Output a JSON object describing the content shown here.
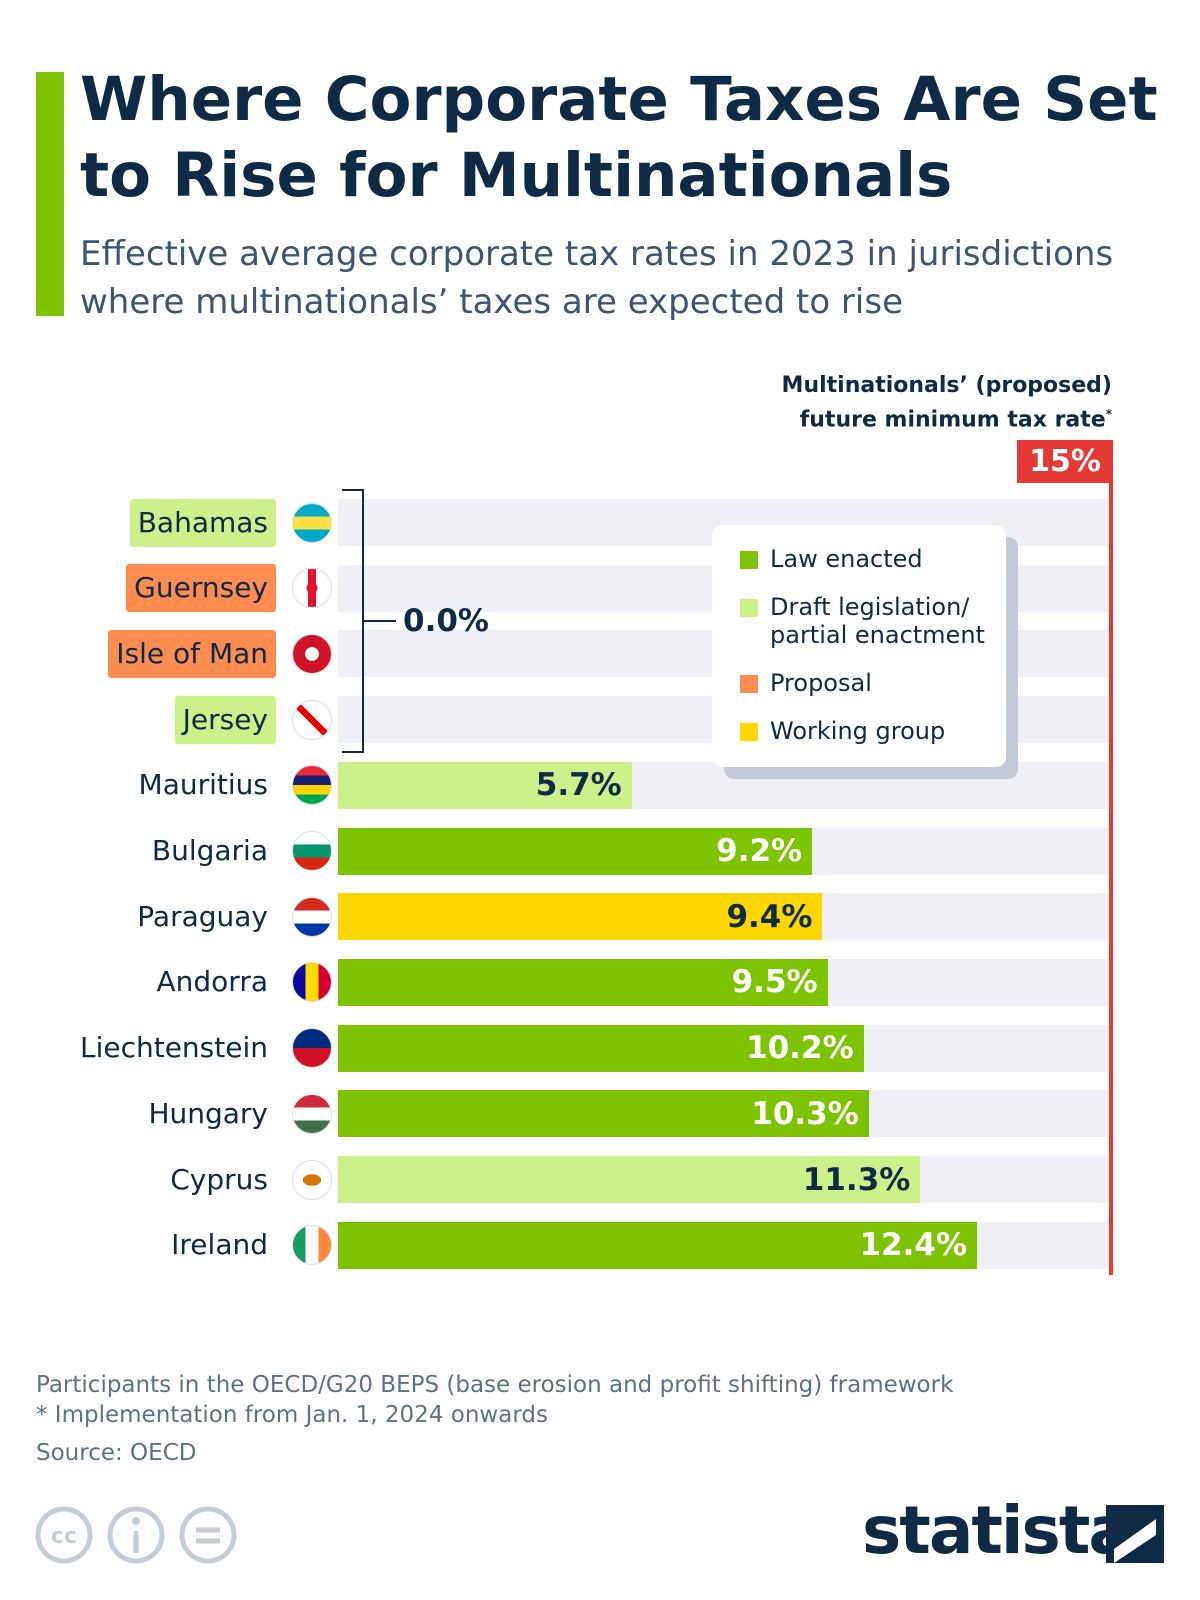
{
  "chart_data": {
    "type": "bar",
    "orientation": "horizontal",
    "title": "Where Corporate Taxes Are Set to Rise for Multinationals",
    "subtitle": "Effective average corporate tax rates in 2023 in jurisdictions where multinationals’ taxes are expected to rise",
    "categories": [
      "Bahamas",
      "Guernsey",
      "Isle of Man",
      "Jersey",
      "Mauritius",
      "Bulgaria",
      "Paraguay",
      "Andorra",
      "Liechtenstein",
      "Hungary",
      "Cyprus",
      "Ireland"
    ],
    "values": [
      0,
      0,
      0,
      0,
      5.7,
      9.2,
      9.4,
      9.5,
      10.2,
      10.3,
      11.3,
      12.4
    ],
    "value_labels": [
      null,
      null,
      null,
      null,
      "5.7%",
      "9.2%",
      "9.4%",
      "9.5%",
      "10.2%",
      "10.3%",
      "11.3%",
      "12.4%"
    ],
    "zero_group_label": "0.0%",
    "status": [
      1,
      2,
      2,
      1,
      1,
      0,
      3,
      0,
      0,
      0,
      1,
      0
    ],
    "legend": [
      {
        "name": "Law enacted",
        "color": "#7dc300"
      },
      {
        "name": "Draft legislation/ partial enactment",
        "color": "#ccf08a"
      },
      {
        "name": "Proposal",
        "color": "#ff8c50"
      },
      {
        "name": "Working group",
        "color": "#ffd600"
      }
    ],
    "xlim": [
      0,
      15
    ],
    "reference_line": {
      "value": 15,
      "label": "15%",
      "color": "#e53935",
      "annotation_lines": [
        "Multinationals’ (proposed)",
        "future minimum tax rate"
      ],
      "annotation_mark": "*"
    },
    "notes": [
      "Participants in the OECD/G20 BEPS (base erosion and profit shifting) framework",
      "* Implementation from Jan. 1, 2024 onwards"
    ],
    "source": "Source: OECD",
    "brand": "statista"
  }
}
